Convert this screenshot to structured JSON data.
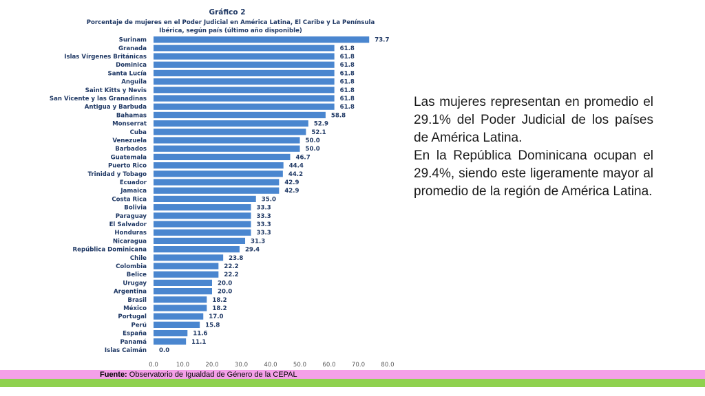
{
  "chart_data": {
    "type": "bar",
    "orientation": "horizontal",
    "title": "Gráfico 2",
    "subtitle_lines": [
      "Porcentaje de mujeres en el Poder Judicial en América Latina, El Caribe y La Península",
      "Ibérica, según país (último año disponible)"
    ],
    "categories": [
      "Surinam",
      "Granada",
      "Islas Vírgenes Británicas",
      "Dominica",
      "Santa Lucía",
      "Anguila",
      "Saint Kitts y Nevis",
      "San Vicente y las Granadinas",
      "Antigua y Barbuda",
      "Bahamas",
      "Monserrat",
      "Cuba",
      "Venezuela",
      "Barbados",
      "Guatemala",
      "Puerto Rico",
      "Trinidad y Tobago",
      "Ecuador",
      "Jamaica",
      "Costa Rica",
      "Bolivia",
      "Paraguay",
      "El Salvador",
      "Honduras",
      "Nicaragua",
      "República Dominicana",
      "Chile",
      "Colombia",
      "Belice",
      "Urugay",
      "Argentina",
      "Brasil",
      "México",
      "Portugal",
      "Perú",
      "España",
      "Panamá",
      "Islas Caimán"
    ],
    "values": [
      73.7,
      61.8,
      61.8,
      61.8,
      61.8,
      61.8,
      61.8,
      61.8,
      61.8,
      58.8,
      52.9,
      52.1,
      50.0,
      50.0,
      46.7,
      44.4,
      44.2,
      42.9,
      42.9,
      35.0,
      33.3,
      33.3,
      33.3,
      33.3,
      31.3,
      29.4,
      23.8,
      22.2,
      22.2,
      20.0,
      20.0,
      18.2,
      18.2,
      17.0,
      15.8,
      11.6,
      11.1,
      0.0
    ],
    "xlim": [
      0,
      80
    ],
    "xticks": [
      "0.0",
      "10.0",
      "20.0",
      "30.0",
      "40.0",
      "50.0",
      "60.0",
      "70.0",
      "80.0"
    ],
    "grid": false,
    "legend": "none",
    "bar_color": "#4a86cf"
  },
  "summary": {
    "paragraph_1": "Las mujeres representan en promedio el 29.1% del Poder Judicial de los países de América Latina.",
    "paragraph_2": "En la República Dominicana ocupan el 29.4%, siendo este ligeramente mayor al promedio de la región de América Latina."
  },
  "source": {
    "label": "Fuente:",
    "text": " Observatorio de Igualdad de Género de la CEPAL"
  }
}
